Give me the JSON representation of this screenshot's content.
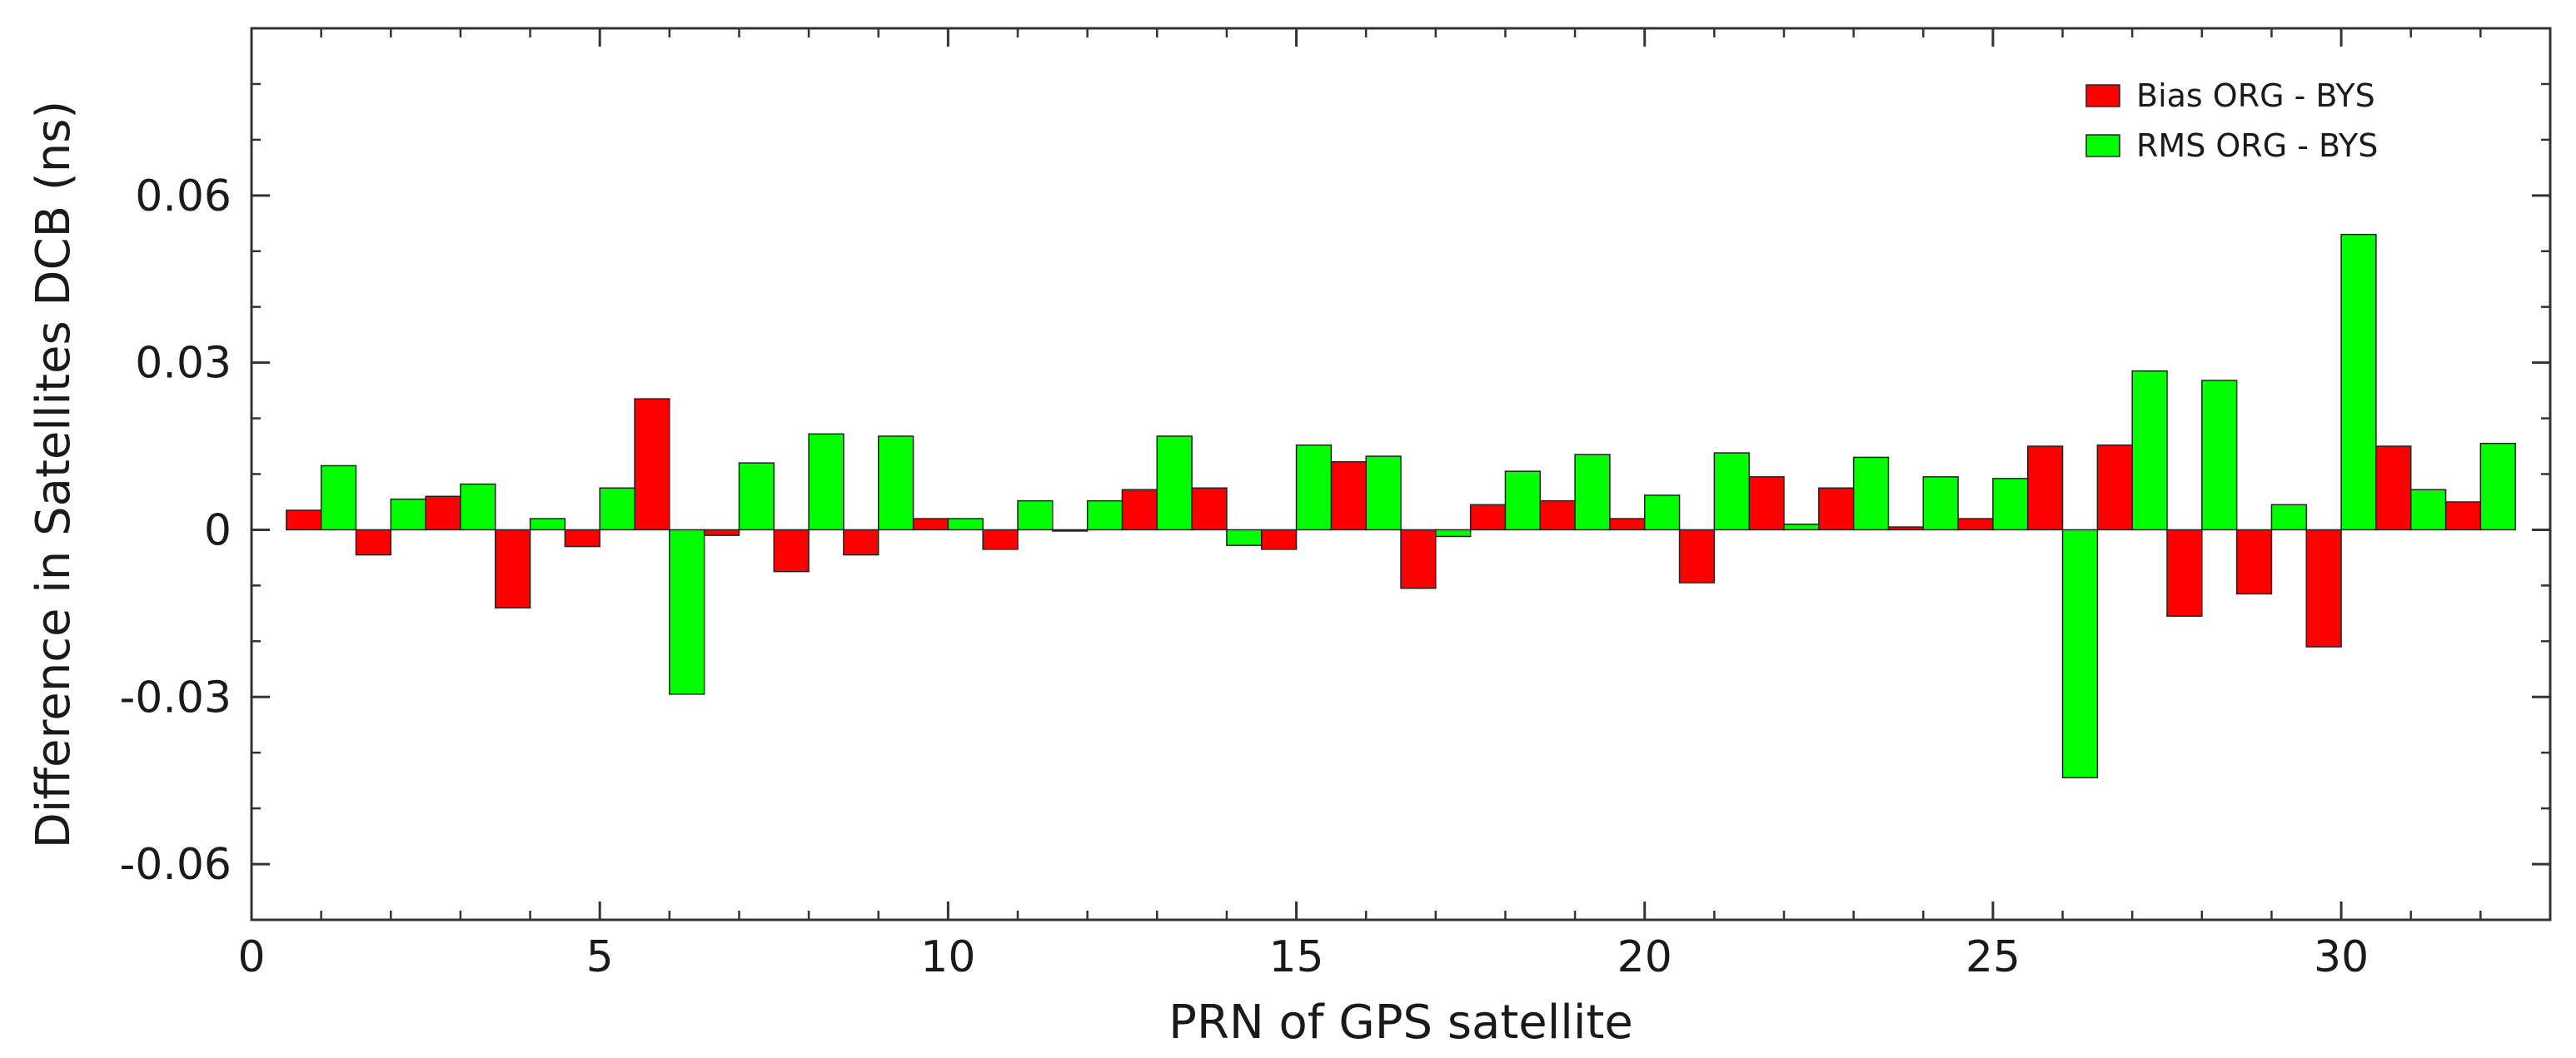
{
  "chart_data": {
    "type": "bar",
    "xlabel": "PRN of GPS satellite",
    "ylabel": "Difference in Satellites DCB (ns)",
    "xlim": [
      0,
      33
    ],
    "ylim": [
      -0.07,
      0.09
    ],
    "xticks": [
      0,
      5,
      10,
      15,
      20,
      25,
      30
    ],
    "yticks": [
      -0.06,
      -0.03,
      0,
      0.03,
      0.06
    ],
    "ytick_labels": [
      "-0.06",
      "-0.03",
      "0",
      "0.03",
      "0.06"
    ],
    "legend_position": "top-right",
    "grid": false,
    "categories": [
      1,
      2,
      3,
      4,
      5,
      6,
      7,
      8,
      9,
      10,
      11,
      12,
      13,
      14,
      15,
      16,
      17,
      18,
      19,
      20,
      21,
      22,
      23,
      24,
      25,
      26,
      27,
      28,
      29,
      30,
      31,
      32
    ],
    "series": [
      {
        "name": "Bias ORG - BYS",
        "color": "#ff0000",
        "values": [
          0.0035,
          -0.0045,
          0.006,
          -0.014,
          -0.003,
          0.0235,
          -0.001,
          -0.0075,
          -0.0045,
          0.002,
          -0.0035,
          0.0,
          0.0072,
          0.0075,
          -0.0035,
          0.0122,
          -0.0105,
          0.0045,
          0.0052,
          0.002,
          -0.0095,
          0.0095,
          0.0075,
          0.0005,
          0.002,
          0.015,
          0.0152,
          -0.0155,
          -0.0115,
          -0.021,
          0.015,
          0.005
        ]
      },
      {
        "name": "RMS ORG - BYS",
        "color": "#00ff00",
        "values": [
          0.0115,
          0.0055,
          0.0082,
          0.002,
          0.0075,
          -0.0295,
          0.012,
          0.0172,
          0.0168,
          0.002,
          0.0052,
          0.0052,
          0.0168,
          -0.0028,
          0.0152,
          0.0132,
          -0.0012,
          0.0105,
          0.0135,
          0.0062,
          0.0138,
          0.001,
          0.013,
          0.0095,
          0.0092,
          -0.0445,
          0.0285,
          0.0268,
          0.0045,
          0.053,
          0.0072,
          0.0155
        ]
      }
    ]
  }
}
